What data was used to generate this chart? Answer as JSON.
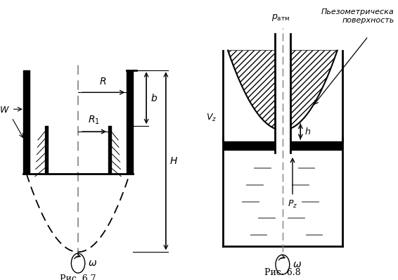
{
  "fig_width": 5.66,
  "fig_height": 3.98,
  "dpi": 100,
  "bg_color": "#ffffff",
  "caption67": "Рис. 6.7",
  "caption68": "Рис. 6.8",
  "piezometric_label": "Пьезометрическа\nповерхность"
}
